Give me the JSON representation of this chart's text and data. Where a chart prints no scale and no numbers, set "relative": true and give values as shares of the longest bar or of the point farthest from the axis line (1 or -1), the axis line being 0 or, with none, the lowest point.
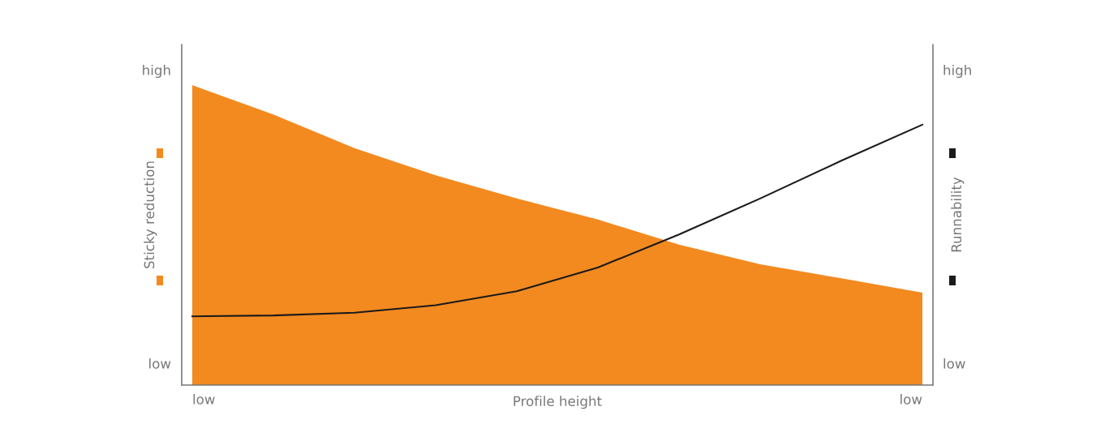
{
  "chart_data": {
    "type": "area",
    "relative": true,
    "xlabel": "Profile height",
    "ylabel": "Sticky reduction",
    "y2label": "Runnability",
    "categories": [
      null,
      null,
      null,
      null,
      null,
      null,
      null,
      null,
      null,
      null
    ],
    "annotations": [
      "high",
      "low",
      "high",
      "low",
      "low",
      "low"
    ],
    "series": [
      {
        "color": "#f38a20",
        "values": [
          1,
          0.902,
          0.79,
          0.699,
          0.622,
          0.552,
          0.468,
          0.403,
          0.356,
          0.308
        ]
      },
      {
        "type": "line",
        "color": "#1a1a1a",
        "values": [
          0.229,
          0.232,
          0.241,
          0.266,
          0.313,
          0.392,
          0.502,
          0.622,
          0.748,
          0.868
        ]
      }
    ]
  }
}
